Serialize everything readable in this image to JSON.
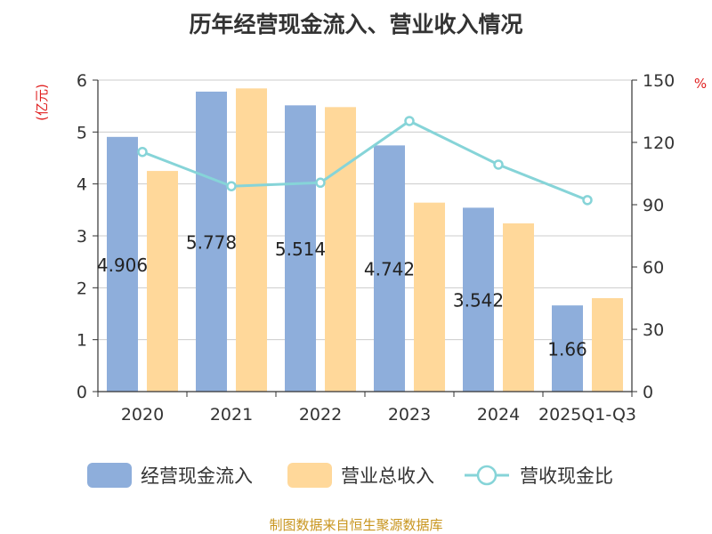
{
  "chart_data": {
    "type": "bar",
    "title": "历年经营现金流入、营业收入情况",
    "categories": [
      "2020",
      "2021",
      "2022",
      "2023",
      "2024",
      "2025Q1-Q3"
    ],
    "y_left": {
      "unit": "(亿元)",
      "min": 0,
      "max": 6,
      "ticks": [
        "0",
        "1",
        "2",
        "3",
        "4",
        "5",
        "6"
      ]
    },
    "y_right": {
      "unit": "%",
      "min": 0,
      "max": 150,
      "ticks": [
        "0",
        "30",
        "60",
        "90",
        "120",
        "150"
      ]
    },
    "series": [
      {
        "name": "经营现金流入",
        "type": "bar",
        "axis": "left",
        "color": "#8eaedb",
        "values": [
          4.906,
          5.778,
          5.514,
          4.742,
          3.542,
          1.66
        ],
        "labels": [
          "4.906",
          "5.778",
          "5.514",
          "4.742",
          "3.542",
          "1.66"
        ]
      },
      {
        "name": "营业总收入",
        "type": "bar",
        "axis": "left",
        "color": "#ffd89a",
        "values": [
          4.25,
          5.84,
          5.48,
          3.64,
          3.24,
          1.8
        ]
      },
      {
        "name": "营收现金比",
        "type": "line",
        "axis": "right",
        "color": "#86d4d8",
        "values": [
          115.4,
          98.9,
          100.6,
          130.3,
          109.3,
          92.2
        ]
      }
    ],
    "grid": true,
    "legend": "bottom"
  },
  "source_text": "制图数据来自恒生聚源数据库"
}
